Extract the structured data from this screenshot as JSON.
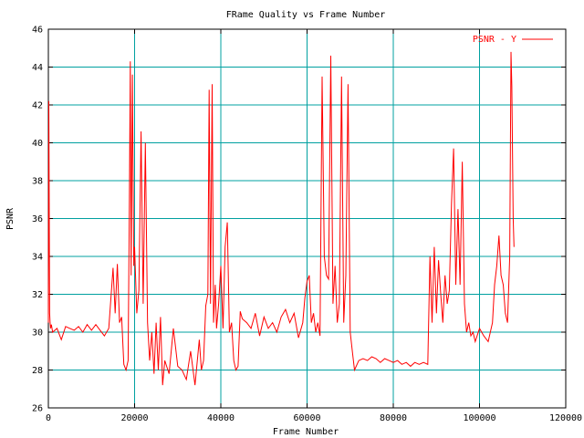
{
  "chart_data": {
    "type": "line",
    "title": "FRame Quality vs Frame Number",
    "xlabel": "Frame Number",
    "ylabel": "PSNR",
    "xlim": [
      0,
      120000
    ],
    "ylim": [
      26,
      46
    ],
    "xticks": [
      0,
      20000,
      40000,
      60000,
      80000,
      100000,
      120000
    ],
    "xtick_labels": [
      "0",
      "20000",
      "40000",
      "60000",
      "80000",
      "100000",
      "120000"
    ],
    "yticks": [
      26,
      28,
      30,
      32,
      34,
      36,
      38,
      40,
      42,
      44,
      46
    ],
    "ytick_labels": [
      "26",
      "28",
      "30",
      "32",
      "34",
      "36",
      "38",
      "40",
      "42",
      "44",
      "46"
    ],
    "grid": true,
    "legend_position": "top-right",
    "series": [
      {
        "name": "PSNR - Y",
        "color": "#ff0000",
        "x": [
          0,
          100,
          300,
          400,
          500,
          700,
          1000,
          2000,
          3000,
          4000,
          5000,
          6000,
          7000,
          8000,
          9000,
          10000,
          11000,
          12000,
          13000,
          14000,
          15000,
          15500,
          16000,
          16500,
          17000,
          17500,
          18000,
          18500,
          18800,
          19000,
          19200,
          19500,
          19800,
          20000,
          20500,
          21000,
          21500,
          22000,
          22500,
          23000,
          23500,
          24000,
          24500,
          25000,
          25500,
          26000,
          26500,
          27000,
          28000,
          29000,
          30000,
          31000,
          32000,
          33000,
          34000,
          35000,
          35500,
          36000,
          36500,
          37000,
          37300,
          37600,
          38000,
          38300,
          38700,
          39000,
          39500,
          40000,
          40500,
          41000,
          41500,
          42000,
          42500,
          43000,
          43500,
          44000,
          44500,
          45000,
          46000,
          47000,
          48000,
          49000,
          50000,
          51000,
          52000,
          53000,
          54000,
          55000,
          56000,
          57000,
          58000,
          59000,
          59500,
          60000,
          60500,
          61000,
          61500,
          62000,
          62500,
          63000,
          63500,
          64000,
          64500,
          65000,
          65500,
          66000,
          66500,
          67000,
          67500,
          68000,
          68500,
          69000,
          69500,
          70000,
          70500,
          71000,
          72000,
          73000,
          74000,
          75000,
          76000,
          77000,
          78000,
          79000,
          80000,
          81000,
          82000,
          83000,
          84000,
          85000,
          86000,
          87000,
          88000,
          88500,
          89000,
          89500,
          90000,
          90500,
          91000,
          91500,
          92000,
          92500,
          93000,
          93500,
          94000,
          94500,
          95000,
          95500,
          96000,
          96500,
          97000,
          97500,
          98000,
          98500,
          99000,
          100000,
          101000,
          102000,
          103000,
          103500,
          104000,
          104500,
          105000,
          105500,
          106000,
          106500,
          107000,
          107300,
          107500,
          107800,
          108000
        ],
        "values": [
          30.5,
          42.2,
          31.0,
          30.5,
          30.2,
          30.4,
          30.0,
          30.2,
          29.6,
          30.3,
          30.2,
          30.1,
          30.3,
          30.0,
          30.4,
          30.1,
          30.4,
          30.1,
          29.8,
          30.2,
          33.4,
          31.0,
          33.6,
          30.5,
          30.8,
          28.3,
          28.0,
          28.5,
          37.0,
          44.3,
          33.0,
          43.6,
          33.5,
          34.5,
          31.0,
          32.2,
          40.6,
          31.5,
          40.0,
          30.5,
          28.5,
          30.0,
          27.8,
          30.5,
          28.0,
          30.8,
          27.2,
          28.5,
          27.8,
          30.2,
          28.2,
          28.0,
          27.5,
          29.0,
          27.2,
          29.6,
          28.0,
          28.5,
          31.4,
          32.0,
          42.8,
          31.5,
          43.1,
          30.5,
          32.5,
          30.2,
          31.5,
          33.5,
          30.2,
          34.5,
          35.8,
          30.0,
          30.5,
          28.5,
          28.0,
          28.2,
          31.1,
          30.7,
          30.5,
          30.2,
          31.0,
          29.8,
          30.8,
          30.2,
          30.5,
          30.0,
          30.8,
          31.2,
          30.5,
          31.0,
          29.7,
          30.5,
          31.8,
          32.7,
          33.0,
          30.5,
          31.0,
          30.0,
          30.5,
          29.8,
          43.5,
          34.0,
          33.0,
          32.8,
          44.6,
          31.5,
          33.5,
          30.5,
          31.5,
          43.5,
          30.5,
          33.0,
          43.1,
          30.0,
          29.0,
          28.0,
          28.5,
          28.6,
          28.5,
          28.7,
          28.6,
          28.4,
          28.6,
          28.5,
          28.4,
          28.5,
          28.3,
          28.4,
          28.2,
          28.4,
          28.3,
          28.4,
          28.3,
          34.0,
          30.5,
          34.5,
          31.0,
          33.8,
          32.0,
          30.5,
          33.0,
          31.5,
          32.2,
          36.8,
          39.7,
          32.5,
          36.5,
          32.5,
          39.0,
          31.5,
          30.0,
          30.5,
          29.8,
          30.0,
          29.5,
          30.2,
          29.8,
          29.5,
          30.5,
          32.5,
          33.5,
          35.1,
          33.0,
          32.5,
          31.0,
          30.5,
          34.0,
          44.8,
          43.0,
          36.0,
          34.5
        ]
      }
    ]
  }
}
